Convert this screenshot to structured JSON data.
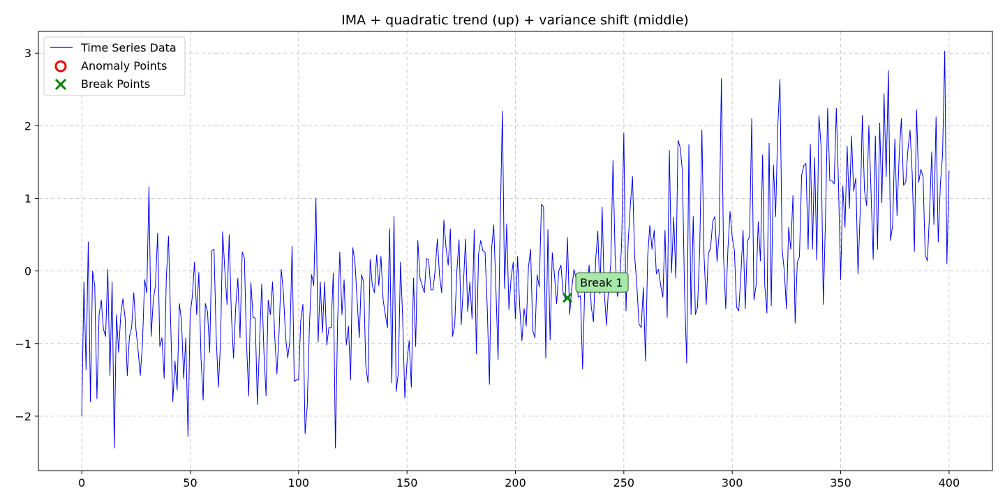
{
  "chart_data": {
    "type": "line",
    "title": "IMA + quadratic trend (up) + variance shift (middle)",
    "xlabel": "",
    "ylabel": "",
    "xlim": [
      -20,
      420
    ],
    "ylim": [
      -2.75,
      3.3
    ],
    "xticks": [
      0,
      50,
      100,
      150,
      200,
      250,
      300,
      350,
      400
    ],
    "yticks": [
      -2,
      -1,
      0,
      1,
      2,
      3
    ],
    "grid": true,
    "legend": {
      "position": "top-left",
      "entries": [
        "Time Series Data",
        "Anomaly Points",
        "Break Points"
      ]
    },
    "series": [
      {
        "name": "Time Series Data",
        "color": "#0000ee",
        "x_start": 0,
        "x_step": 1,
        "values": [
          -2.0,
          -0.15,
          -1.36,
          0.4,
          -1.8,
          0.0,
          -0.2,
          -1.76,
          -0.6,
          -0.4,
          -0.8,
          -0.9,
          0.02,
          -1.44,
          -0.15,
          -2.44,
          -0.6,
          -1.12,
          -0.6,
          -0.38,
          -0.65,
          -1.44,
          -0.9,
          -0.78,
          -0.3,
          -0.8,
          -1.1,
          -1.44,
          -1.0,
          -0.12,
          -0.3,
          1.16,
          -0.9,
          -0.4,
          -0.2,
          0.52,
          -1.04,
          -0.92,
          -1.48,
          -0.1,
          0.48,
          -0.7,
          -1.8,
          -1.24,
          -1.64,
          -0.45,
          -0.68,
          -1.48,
          -0.92,
          -2.28,
          -0.6,
          -0.35,
          0.12,
          -0.6,
          -0.02,
          -1.2,
          -1.78,
          -0.45,
          -0.56,
          -1.12,
          0.28,
          0.3,
          -0.9,
          -1.6,
          -1.0,
          0.54,
          0.0,
          -0.46,
          0.5,
          -0.6,
          -1.2,
          -0.5,
          -0.1,
          -0.92,
          0.26,
          0.18,
          -1.0,
          -1.72,
          -0.16,
          -0.64,
          -0.65,
          -1.84,
          -1.0,
          -0.18,
          -1.1,
          -1.72,
          -0.4,
          -0.6,
          -0.15,
          -0.9,
          -1.42,
          -0.85,
          0.02,
          -0.3,
          -0.9,
          -1.2,
          -0.95,
          0.34,
          -1.52,
          -1.5,
          -1.5,
          -0.68,
          -0.46,
          -2.24,
          -1.86,
          -0.76,
          -0.05,
          -0.2,
          1.0,
          -0.98,
          -0.15,
          -0.85,
          -0.15,
          -1.02,
          -0.78,
          -0.78,
          -0.03,
          -2.44,
          -0.7,
          0.26,
          -0.6,
          -0.12,
          -1.02,
          -0.76,
          -1.5,
          0.32,
          0.12,
          -0.4,
          -0.92,
          -0.05,
          -0.15,
          -1.3,
          -1.54,
          0.16,
          -0.2,
          -0.3,
          0.22,
          -0.2,
          0.2,
          -0.4,
          -0.6,
          -0.78,
          0.58,
          -1.54,
          0.75,
          -1.66,
          -1.4,
          0.12,
          -0.65,
          -1.75,
          -1.26,
          -0.96,
          -1.6,
          -0.1,
          -1.04,
          0.42,
          -0.1,
          -0.2,
          -0.3,
          0.17,
          0.15,
          -0.26,
          -0.26,
          0.02,
          0.44,
          -0.06,
          -0.3,
          0.7,
          0.32,
          0.08,
          0.58,
          -0.9,
          -0.75,
          0.0,
          0.43,
          -0.74,
          -0.2,
          0.44,
          -0.56,
          -0.15,
          -0.66,
          0.57,
          -1.14,
          0.23,
          0.42,
          0.28,
          0.26,
          -0.5,
          -1.56,
          0.3,
          0.63,
          -0.24,
          -1.22,
          0.7,
          2.2,
          -0.24,
          0.65,
          -0.53,
          -0.1,
          0.12,
          -0.66,
          0.2,
          -0.5,
          -0.96,
          -0.52,
          -0.76,
          0.05,
          0.3,
          -0.82,
          -0.92,
          -0.05,
          -0.22,
          0.92,
          0.88,
          -1.2,
          0.57,
          -0.95,
          0.25,
          -0.05,
          -0.45,
          0.0,
          0.08,
          -0.3,
          -0.38,
          0.46,
          -0.6,
          -0.24,
          0.02,
          -0.1,
          -0.36,
          -0.34,
          -1.35,
          -0.2,
          -0.3,
          0.08,
          -0.5,
          -0.7,
          0.14,
          0.55,
          -0.32,
          0.88,
          -0.3,
          -0.75,
          -0.2,
          0.1,
          1.52,
          0.2,
          -0.35,
          -0.24,
          0.4,
          1.9,
          -0.55,
          0.4,
          0.9,
          1.3,
          0.2,
          -0.2,
          -0.73,
          -0.78,
          -0.23,
          -1.24,
          0.2,
          0.63,
          0.3,
          0.56,
          -0.04,
          0.02,
          -0.2,
          -0.36,
          0.56,
          -0.64,
          1.66,
          -0.02,
          0.74,
          -0.1,
          1.8,
          1.7,
          1.38,
          -0.3,
          -1.27,
          1.74,
          -0.6,
          0.75,
          -0.6,
          -0.5,
          0.3,
          1.94,
          0.2,
          -0.46,
          0.24,
          0.32,
          0.68,
          0.75,
          0.13,
          0.54,
          2.65,
          0.2,
          -0.52,
          0.3,
          0.82,
          0.46,
          0.28,
          -0.5,
          -0.55,
          -0.04,
          0.56,
          -0.52,
          0.4,
          0.48,
          2.1,
          -0.4,
          -0.2,
          0.68,
          0.14,
          1.6,
          -0.2,
          -0.58,
          1.76,
          -0.48,
          1.46,
          0.75,
          1.98,
          2.64,
          0.3,
          0.0,
          -0.52,
          0.6,
          0.3,
          1.04,
          -0.72,
          0.12,
          0.2,
          1.32,
          1.45,
          1.48,
          0.3,
          1.75,
          0.3,
          1.56,
          0.15,
          2.14,
          1.7,
          -0.46,
          0.7,
          2.24,
          1.24,
          1.24,
          1.2,
          2.24,
          1.2,
          -0.12,
          1.17,
          0.6,
          1.72,
          0.86,
          1.86,
          1.1,
          1.28,
          -0.04,
          0.8,
          2.14,
          1.1,
          0.9,
          2.0,
          1.1,
          0.16,
          1.86,
          0.3,
          2.04,
          0.94,
          2.44,
          1.3,
          2.76,
          0.42,
          0.64,
          1.82,
          0.76,
          1.6,
          2.1,
          1.18,
          1.22,
          1.66,
          1.94,
          1.34,
          0.27,
          2.22,
          1.22,
          1.4,
          1.3,
          0.22,
          0.14,
          0.8,
          1.64,
          0.64,
          2.12,
          0.4,
          1.2,
          1.6,
          3.03,
          0.1,
          1.38
        ]
      }
    ],
    "anomaly_points": [],
    "break_points": [
      {
        "x": 224,
        "y": -0.37,
        "label": "Break 1",
        "color": "#008000"
      }
    ],
    "annotation_style": {
      "box_fill": "#a8e8a8",
      "box_stroke": "#2a5a2a"
    }
  }
}
